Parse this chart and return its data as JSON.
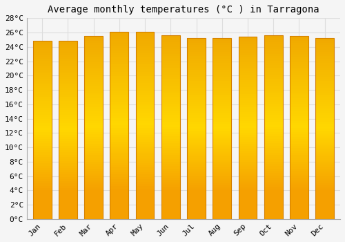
{
  "title": "Average monthly temperatures (°C ) in Tarragona",
  "months": [
    "Jan",
    "Feb",
    "Mar",
    "Apr",
    "May",
    "Jun",
    "Jul",
    "Aug",
    "Sep",
    "Oct",
    "Nov",
    "Dec"
  ],
  "values": [
    24.8,
    24.8,
    25.5,
    26.1,
    26.1,
    25.6,
    25.2,
    25.2,
    25.4,
    25.6,
    25.5,
    25.2
  ],
  "bar_color_center": "#FFD700",
  "bar_color_edge": "#F5A000",
  "background_color": "#f5f5f5",
  "grid_color": "#dddddd",
  "ylim": [
    0,
    28
  ],
  "ytick_step": 2,
  "title_fontsize": 10,
  "tick_fontsize": 8,
  "font_family": "monospace"
}
